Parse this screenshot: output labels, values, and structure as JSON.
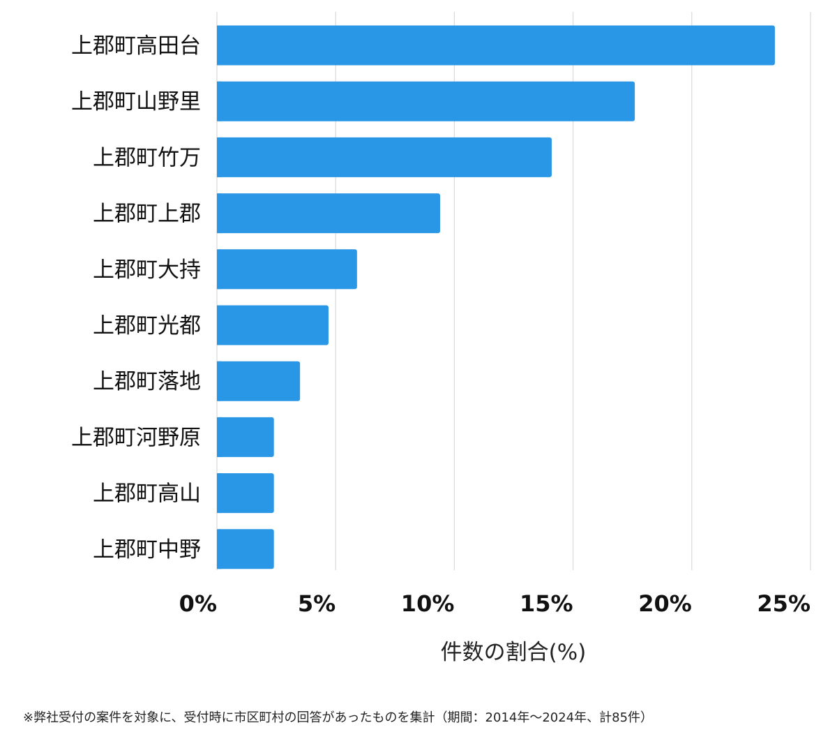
{
  "chart_data": {
    "type": "bar",
    "orientation": "horizontal",
    "categories": [
      "上郡町高田台",
      "上郡町山野里",
      "上郡町竹万",
      "上郡町上郡",
      "上郡町大持",
      "上郡町光都",
      "上郡町落地",
      "上郡町河野原",
      "上郡町高山",
      "上郡町中野"
    ],
    "values": [
      23.5,
      17.6,
      14.1,
      9.4,
      5.9,
      4.7,
      3.5,
      2.4,
      2.4,
      2.4
    ],
    "xlabel": "件数の割合(%)",
    "xlim": [
      0,
      25
    ],
    "xticks": [
      0,
      5,
      10,
      15,
      20,
      25
    ],
    "tick_labels": [
      "0%",
      "5%",
      "10%",
      "15%",
      "20%",
      "25%"
    ],
    "grid": true,
    "bar_color": "#2996e6",
    "grid_color": "#d9d9d9"
  },
  "footnote": "※弊社受付の案件を対象に、受付時に市区町村の回答があったものを集計（期間：2014年〜2024年、計85件）"
}
